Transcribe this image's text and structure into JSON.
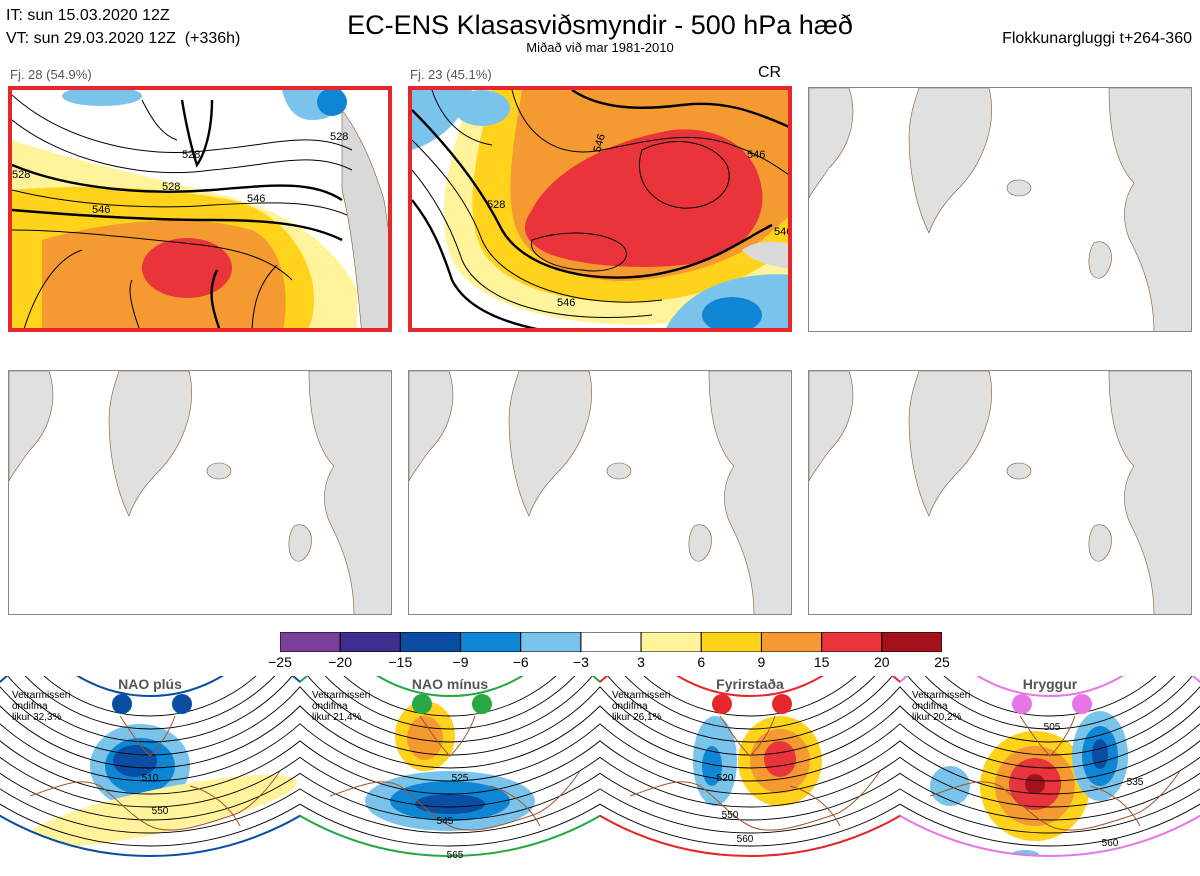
{
  "header": {
    "it_line": "IT: sun 15.03.2020 12Z",
    "vt_line": "VT: sun 29.03.2020 12Z  (+336h)",
    "title": "EC-ENS Klasasviðsmyndir - 500 hPa hæð",
    "subtitle": "Miðað við mar 1981-2010",
    "window": "Flokkunargluggi t+264-360"
  },
  "panels": [
    {
      "label": "Fj. 28 (54.9%)",
      "selected": true,
      "regime": "blocking",
      "contour_labels": [
        "528",
        "546",
        "528",
        "546",
        "528",
        "528"
      ]
    },
    {
      "label": "Fj. 23 (45.1%)",
      "selected": true,
      "regime": "blocking",
      "tag": "CR",
      "contour_labels": [
        "546",
        "546",
        "528",
        "546",
        "546"
      ]
    },
    {
      "label": "",
      "selected": false,
      "regime": "empty"
    },
    {
      "label": "",
      "selected": false,
      "regime": "empty"
    },
    {
      "label": "",
      "selected": false,
      "regime": "empty"
    },
    {
      "label": "",
      "selected": false,
      "regime": "empty"
    }
  ],
  "colorbar": {
    "ticks": [
      "−25",
      "−20",
      "−15",
      "−9",
      "−6",
      "−3",
      "3",
      "6",
      "9",
      "15",
      "20",
      "25"
    ],
    "colors": [
      "#7b3e99",
      "#3f2d8f",
      "#0a4ea3",
      "#0f86d4",
      "#7ac3ea",
      "#ffffff",
      "#fff39b",
      "#ffd21c",
      "#f59a30",
      "#e8343a",
      "#a3121a"
    ]
  },
  "regimes": [
    {
      "name": "NAO plús",
      "note": "Vetrarmisseri\nondifma\nlikur 32,3%",
      "color": "#0a4ea3",
      "labels": [
        "510",
        "550"
      ]
    },
    {
      "name": "NAO mínus",
      "note": "Vetrarmisseri\nondifma\nlikur 21,4%",
      "color": "#27a845",
      "labels": [
        "525",
        "545",
        "565"
      ]
    },
    {
      "name": "Fyrirstaða",
      "note": "Vetrarmisseri\nondifma\nlikur 26,1%",
      "color": "#e5262b",
      "labels": [
        "520",
        "550",
        "560"
      ]
    },
    {
      "name": "Hryggur",
      "note": "Vetrarmisseri\nondifma\nlikur 20,2%",
      "color": "#e777e6",
      "labels": [
        "505",
        "535",
        "560"
      ]
    }
  ]
}
